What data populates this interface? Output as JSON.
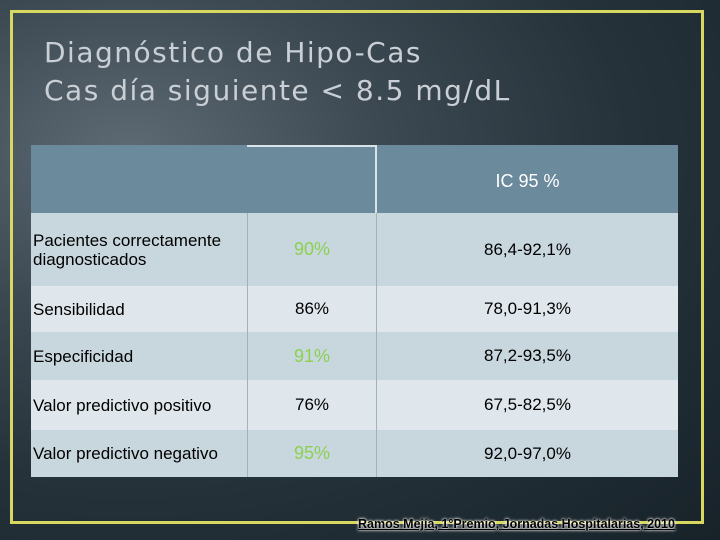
{
  "title": {
    "line1": "Diagnóstico de Hipo-Cas",
    "line2": "Cas día siguiente < 8.5 mg/dL"
  },
  "table": {
    "header_col3": "IC 95 %",
    "rows": [
      {
        "label": "Pacientes correctamente diagnosticados",
        "value": "90%",
        "ci": "86,4-92,1%",
        "highlight": true
      },
      {
        "label": "Sensibilidad",
        "value": "86%",
        "ci": "78,0-91,3%",
        "highlight": false
      },
      {
        "label": "Especificidad",
        "value": "91%",
        "ci": "87,2-93,5%",
        "highlight": true
      },
      {
        "label": "Valor predictivo positivo",
        "value": "76%",
        "ci": "67,5-82,5%",
        "highlight": false
      },
      {
        "label": "Valor predictivo negativo",
        "value": "95%",
        "ci": "92,0-97,0%",
        "highlight": true
      }
    ]
  },
  "credit": "Ramos Mejía, 1°Premio, Jornadas Hospitalarias, 2010",
  "colors": {
    "accent_green": "#8bd14f",
    "frame_yellow": "#d8d860",
    "header_bg": "#6b8a9c"
  }
}
